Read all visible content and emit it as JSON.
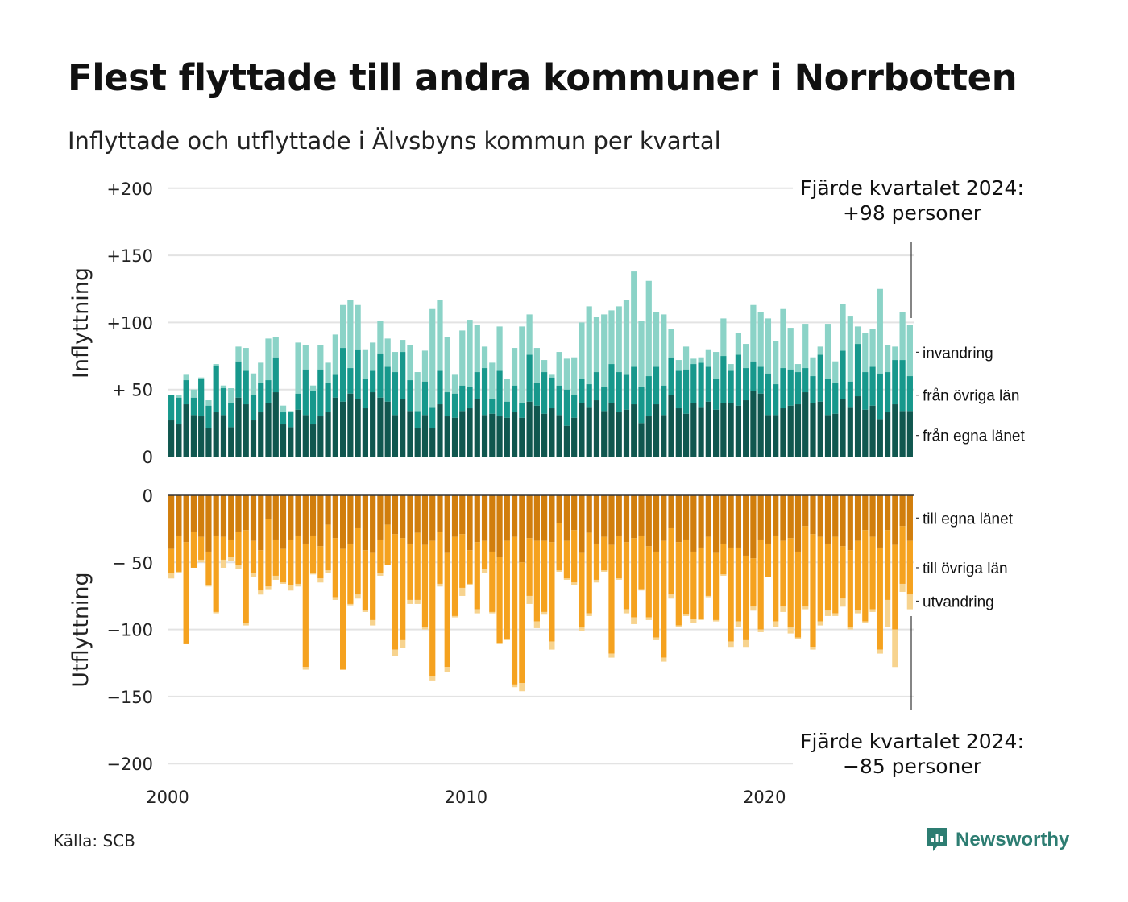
{
  "title": "Flest flyttade till andra kommuner i Norrbotten",
  "subtitle": "Inflyttade och utflyttade i Älvsbyns kommun per kvartal",
  "source": "Källa: SCB",
  "brand": "Newsworthy",
  "chart_data": {
    "type": "bar",
    "stacked": true,
    "x": {
      "start": "2000 Q1",
      "end": "2024 Q4",
      "frequency": "quarterly",
      "tick_labels": [
        "2000",
        "2010",
        "2020"
      ]
    },
    "y_ticks": [
      "+200",
      "+150",
      "+100",
      "+ 50",
      "0",
      "0",
      "− 50",
      "−100",
      "−150",
      "−200"
    ],
    "top_panel": {
      "ylabel": "Inflyttning",
      "ylim": [
        0,
        200
      ],
      "tick_values": [
        200,
        150,
        100,
        50,
        0
      ],
      "series": [
        {
          "name": "från egna länet",
          "color": "#10574f",
          "values": [
            27,
            24,
            39,
            31,
            30,
            21,
            33,
            31,
            22,
            44,
            39,
            27,
            33,
            40,
            48,
            24,
            22,
            35,
            31,
            24,
            30,
            33,
            44,
            41,
            47,
            43,
            36,
            48,
            44,
            41,
            31,
            43,
            34,
            21,
            31,
            21,
            39,
            30,
            29,
            34,
            36,
            43,
            31,
            32,
            30,
            29,
            33,
            29,
            41,
            38,
            32,
            36,
            31,
            23,
            29,
            40,
            37,
            42,
            34,
            40,
            33,
            35,
            39,
            25,
            30,
            39,
            31,
            46,
            36,
            32,
            40,
            37,
            41,
            35,
            40,
            40,
            38,
            42,
            49,
            47,
            31,
            31,
            36,
            38,
            39,
            48,
            40,
            41,
            31,
            32,
            43,
            37,
            45,
            35,
            38,
            28,
            33,
            39,
            34,
            34
          ]
        },
        {
          "name": "från övriga län",
          "color": "#17988c",
          "values": [
            19,
            20,
            18,
            13,
            28,
            17,
            35,
            20,
            18,
            27,
            25,
            19,
            22,
            17,
            26,
            9,
            11,
            12,
            34,
            25,
            35,
            22,
            17,
            40,
            19,
            37,
            22,
            16,
            33,
            26,
            32,
            35,
            23,
            13,
            25,
            16,
            25,
            18,
            18,
            19,
            16,
            20,
            35,
            11,
            34,
            12,
            20,
            11,
            35,
            17,
            31,
            23,
            22,
            27,
            17,
            18,
            17,
            21,
            18,
            29,
            30,
            26,
            28,
            27,
            30,
            28,
            22,
            28,
            28,
            33,
            29,
            33,
            26,
            23,
            35,
            24,
            38,
            24,
            22,
            20,
            31,
            23,
            30,
            27,
            24,
            18,
            20,
            35,
            27,
            23,
            36,
            19,
            39,
            28,
            29,
            34,
            30,
            33,
            38,
            26
          ]
        },
        {
          "name": "invandring",
          "color": "#8bd3c7",
          "values": [
            0,
            2,
            4,
            6,
            1,
            4,
            1,
            2,
            11,
            11,
            17,
            16,
            15,
            31,
            15,
            5,
            1,
            38,
            18,
            4,
            18,
            15,
            30,
            32,
            51,
            33,
            22,
            21,
            24,
            21,
            15,
            9,
            26,
            29,
            23,
            73,
            53,
            41,
            14,
            41,
            50,
            35,
            16,
            27,
            33,
            17,
            28,
            57,
            30,
            26,
            9,
            2,
            25,
            23,
            28,
            42,
            58,
            41,
            54,
            40,
            49,
            56,
            71,
            49,
            71,
            41,
            53,
            21,
            8,
            17,
            4,
            4,
            13,
            20,
            28,
            5,
            16,
            18,
            42,
            41,
            41,
            32,
            44,
            31,
            6,
            33,
            14,
            6,
            41,
            16,
            35,
            49,
            13,
            29,
            28,
            63,
            20,
            10,
            36,
            38
          ]
        }
      ],
      "annotation": "Fjärde kvartalet 2024:\n+98 personer"
    },
    "bottom_panel": {
      "ylabel": "Utflyttning",
      "ylim": [
        -200,
        0
      ],
      "tick_values": [
        0,
        -50,
        -100,
        -150,
        -200
      ],
      "series": [
        {
          "name": "till egna länet",
          "color": "#d17e0d",
          "values": [
            -40,
            -30,
            -35,
            -27,
            -31,
            -42,
            -30,
            -31,
            -33,
            -27,
            -26,
            -34,
            -41,
            -18,
            -33,
            -40,
            -33,
            -30,
            -36,
            -30,
            -38,
            -22,
            -32,
            -40,
            -36,
            -24,
            -41,
            -43,
            -33,
            -22,
            -29,
            -32,
            -36,
            -28,
            -37,
            -34,
            -27,
            -43,
            -31,
            -29,
            -41,
            -35,
            -34,
            -42,
            -46,
            -34,
            -31,
            -50,
            -32,
            -34,
            -34,
            -35,
            -21,
            -34,
            -26,
            -43,
            -28,
            -36,
            -31,
            -37,
            -30,
            -35,
            -32,
            -30,
            -38,
            -42,
            -34,
            -24,
            -35,
            -33,
            -42,
            -39,
            -31,
            -43,
            -36,
            -39,
            -39,
            -45,
            -47,
            -33,
            -36,
            -30,
            -34,
            -32,
            -42,
            -23,
            -29,
            -31,
            -36,
            -31,
            -38,
            -41,
            -34,
            -26,
            -31,
            -39,
            -26,
            -37,
            -23,
            -34
          ]
        },
        {
          "name": "till övriga län",
          "color": "#f5a21f",
          "values": [
            -18,
            -27,
            -76,
            -27,
            -17,
            -25,
            -57,
            -17,
            -13,
            -25,
            -69,
            -24,
            -30,
            -50,
            -27,
            -25,
            -34,
            -36,
            -92,
            -28,
            -24,
            -34,
            -44,
            -90,
            -45,
            -50,
            -45,
            -50,
            -25,
            -30,
            -86,
            -76,
            -42,
            -50,
            -61,
            -101,
            -39,
            -85,
            -59,
            -40,
            -25,
            -50,
            -21,
            -45,
            -64,
            -73,
            -110,
            -90,
            -43,
            -60,
            -53,
            -74,
            -35,
            -28,
            -39,
            -55,
            -60,
            -27,
            -25,
            -81,
            -32,
            -50,
            -59,
            -40,
            -53,
            -64,
            -87,
            -50,
            -62,
            -56,
            -50,
            -53,
            -44,
            -50,
            -23,
            -70,
            -55,
            -63,
            -36,
            -67,
            -25,
            -64,
            -49,
            -66,
            -64,
            -60,
            -84,
            -63,
            -50,
            -57,
            -39,
            -57,
            -52,
            -68,
            -54,
            -76,
            -52,
            -63,
            -43,
            -40
          ]
        },
        {
          "name": "utvandring",
          "color": "#f7d38e",
          "values": [
            -4,
            -1,
            0,
            0,
            -2,
            -1,
            -1,
            -6,
            -3,
            -3,
            -2,
            -3,
            -3,
            -2,
            -3,
            -1,
            -4,
            -2,
            -2,
            -1,
            -3,
            -2,
            -2,
            0,
            -1,
            -3,
            -1,
            -4,
            -2,
            0,
            -5,
            -6,
            -3,
            -3,
            -2,
            -3,
            -2,
            -4,
            -1,
            -6,
            -1,
            -3,
            -3,
            -1,
            -1,
            -1,
            -2,
            -6,
            -6,
            -5,
            -2,
            -6,
            -1,
            -1,
            -2,
            -3,
            -2,
            -2,
            -1,
            -3,
            -1,
            -3,
            -5,
            -1,
            -2,
            -2,
            -3,
            -3,
            -1,
            -1,
            -3,
            -1,
            -1,
            -1,
            -1,
            -4,
            -4,
            -5,
            -3,
            -2,
            0,
            -4,
            -4,
            -5,
            -1,
            -2,
            -2,
            -3,
            -4,
            -2,
            -6,
            -2,
            -2,
            -1,
            -2,
            -3,
            -20,
            -28,
            -6,
            -11
          ]
        }
      ],
      "annotation": "Fjärde kvartalet 2024:\n−85 personer"
    }
  }
}
